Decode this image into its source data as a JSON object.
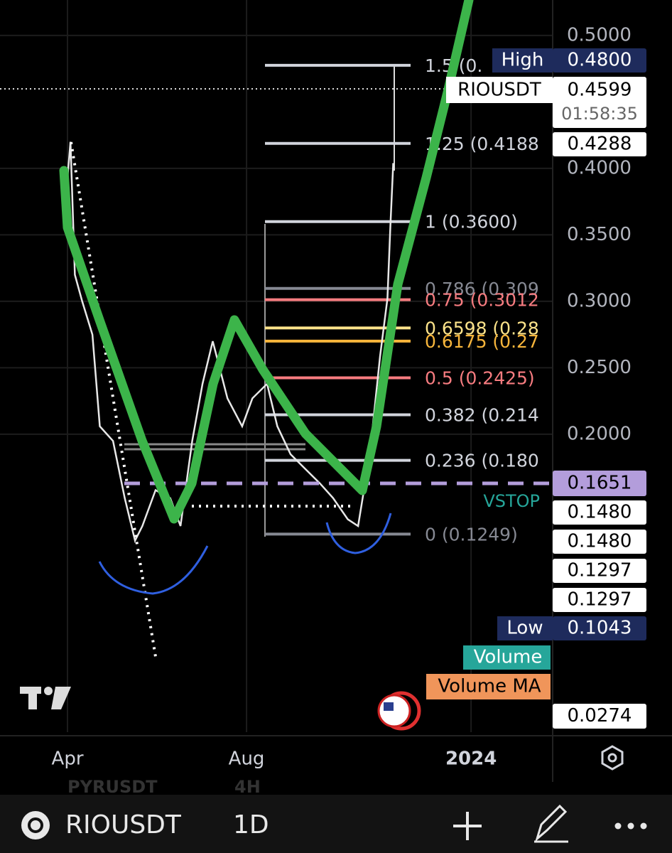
{
  "chart_data": {
    "type": "line",
    "color": "#e8e8e8",
    "grid": true,
    "x": [
      0,
      2,
      5,
      10,
      17,
      22,
      31,
      39,
      46,
      51,
      60,
      70,
      77,
      85,
      92,
      99,
      109,
      119,
      126,
      136,
      143,
      152,
      162,
      172,
      181,
      191,
      198,
      206,
      213,
      218,
      220,
      222
    ],
    "values": [
      0.393,
      0.42,
      0.32,
      0.3,
      0.275,
      0.206,
      0.195,
      0.152,
      0.12,
      0.131,
      0.158,
      0.152,
      0.131,
      0.195,
      0.238,
      0.27,
      0.227,
      0.206,
      0.227,
      0.238,
      0.206,
      0.185,
      0.174,
      0.163,
      0.152,
      0.136,
      0.131,
      0.185,
      0.259,
      0.302,
      0.356,
      0.404
    ],
    "xlim": [
      -46,
      330.6
    ],
    "ylim": [
      -0.0241,
      0.5267
    ],
    "xticks": [
      {
        "value": 0,
        "label": "Apr"
      },
      {
        "value": 122,
        "label": "Aug"
      },
      {
        "value": 275,
        "label": "2024"
      }
    ],
    "yticks": [
      {
        "value": 0.5,
        "label": "0.5000"
      },
      {
        "value": 0.4,
        "label": "0.4000"
      },
      {
        "value": 0.35,
        "label": "0.3500"
      },
      {
        "value": 0.3,
        "label": "0.3000"
      },
      {
        "value": 0.25,
        "label": "0.2500"
      },
      {
        "value": 0.2,
        "label": "0.2000"
      }
    ],
    "fib_levels": [
      {
        "label": "1.5 (0.",
        "price": 0.4776,
        "color": "#d1d4dc"
      },
      {
        "label": "1.25 (0.4188",
        "price": 0.4188,
        "color": "#d1d4dc"
      },
      {
        "label": "1 (0.3600)",
        "price": 0.36,
        "color": "#d1d4dc"
      },
      {
        "label": "0.786 (0.309",
        "price": 0.3097,
        "color": "#868993"
      },
      {
        "label": "0.75 (0.3012",
        "price": 0.3012,
        "color": "#f77c80"
      },
      {
        "label": "0.6598 (0.28",
        "price": 0.28,
        "color": "#fce38a"
      },
      {
        "label": "0.6175 (0.27",
        "price": 0.2701,
        "color": "#f7b53b"
      },
      {
        "label": "0.5 (0.2425)",
        "price": 0.2425,
        "color": "#f77c80"
      },
      {
        "label": "0.382 (0.214",
        "price": 0.2147,
        "color": "#d1d4dc"
      },
      {
        "label": "0.236 (0.180",
        "price": 0.1804,
        "color": "#d1d4dc"
      },
      {
        "label": "0 (0.1249)",
        "price": 0.1249,
        "color": "#868993"
      }
    ],
    "price_tags": [
      {
        "label": "High",
        "text": "0.4800",
        "style": "navy"
      },
      {
        "label": "RIOUSDT",
        "text": "0.4599",
        "timer": "01:58:35",
        "style": "white"
      },
      {
        "text": "0.4288",
        "style": "white"
      },
      {
        "text": "0.1651",
        "style": "purple"
      },
      {
        "label": "VSTOP",
        "text": "0.1480",
        "style": "vstop"
      },
      {
        "text": "0.1480",
        "style": "white"
      },
      {
        "text": "0.1297",
        "style": "white"
      },
      {
        "text": "0.1297",
        "style": "white"
      },
      {
        "label": "Low",
        "text": "0.1043",
        "style": "navy"
      },
      {
        "label": "Volume",
        "style": "teal"
      },
      {
        "label": "Volume MA",
        "text": "0.0274",
        "style": "orange"
      }
    ]
  },
  "ghost": {
    "symbol": "PYRUSDT",
    "interval": "4H"
  },
  "toolbar": {
    "symbol": "RIOUSDT",
    "interval": "1D"
  }
}
